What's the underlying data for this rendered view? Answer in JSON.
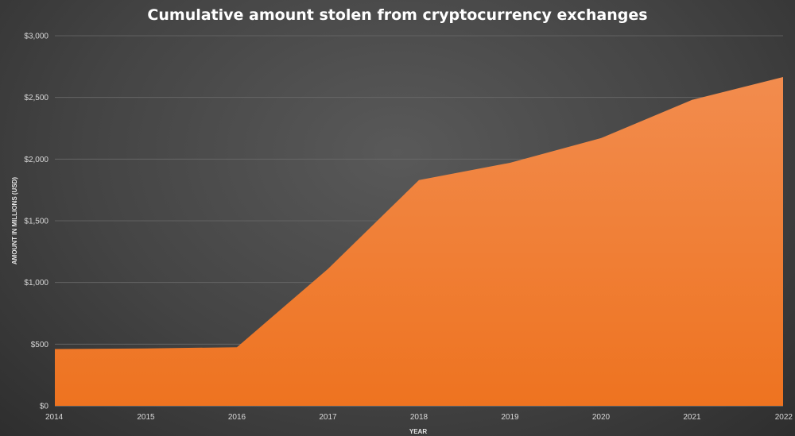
{
  "chart_data": {
    "type": "area",
    "title": "Cumulative amount stolen from cryptocurrency exchanges",
    "xlabel": "YEAR",
    "ylabel": "AMOUNT IN MILLIONS (USD)",
    "x": [
      "2014",
      "2015",
      "2016",
      "2017",
      "2018",
      "2019",
      "2020",
      "2021",
      "2022"
    ],
    "series": [
      {
        "values": [
          460,
          465,
          475,
          1110,
          1830,
          1970,
          2170,
          2480,
          2665
        ]
      }
    ],
    "yticks": [
      "$0",
      "$500",
      "$1,000",
      "$1,500",
      "$2,000",
      "$2,500",
      "$3,000"
    ],
    "ylim": [
      0,
      3000
    ],
    "grid": true,
    "legend": "none",
    "colors": {
      "area_top": "#f28c4e",
      "area_bottom": "#ee7320",
      "background": "#474747"
    }
  }
}
